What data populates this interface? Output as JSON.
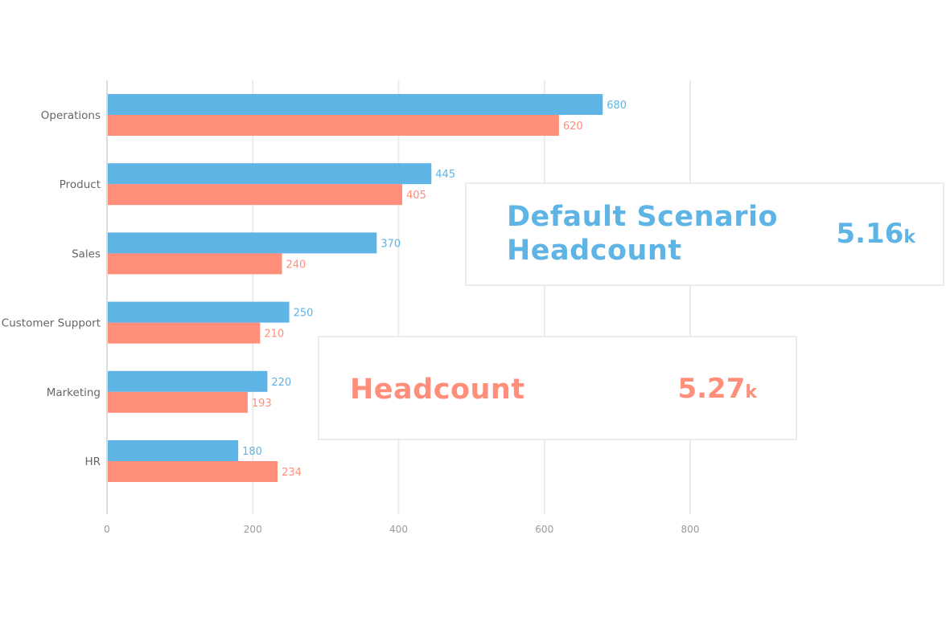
{
  "chart_data": {
    "type": "bar",
    "orientation": "horizontal",
    "categories": [
      "Operations",
      "Product",
      "Sales",
      "Customer Support",
      "Marketing",
      "HR"
    ],
    "series": [
      {
        "values": [
          680,
          445,
          370,
          250,
          220,
          180
        ],
        "color": "#5eb4e4"
      },
      {
        "values": [
          620,
          405,
          240,
          210,
          193,
          234
        ],
        "color": "#ff8e7b"
      }
    ],
    "x_ticks": [
      "0",
      "200",
      "400",
      "600",
      "800"
    ],
    "xlim": [
      0,
      800
    ],
    "grid": true,
    "legend": "none"
  },
  "kpis": {
    "default_scenario": {
      "title_line1": "Default Scenario",
      "title_line2": "Headcount",
      "value": "5.16",
      "unit": "k",
      "color": "#5eb4e4"
    },
    "headcount": {
      "title": "Headcount",
      "value": "5.27",
      "unit": "k",
      "color": "#ff8e7b"
    }
  }
}
